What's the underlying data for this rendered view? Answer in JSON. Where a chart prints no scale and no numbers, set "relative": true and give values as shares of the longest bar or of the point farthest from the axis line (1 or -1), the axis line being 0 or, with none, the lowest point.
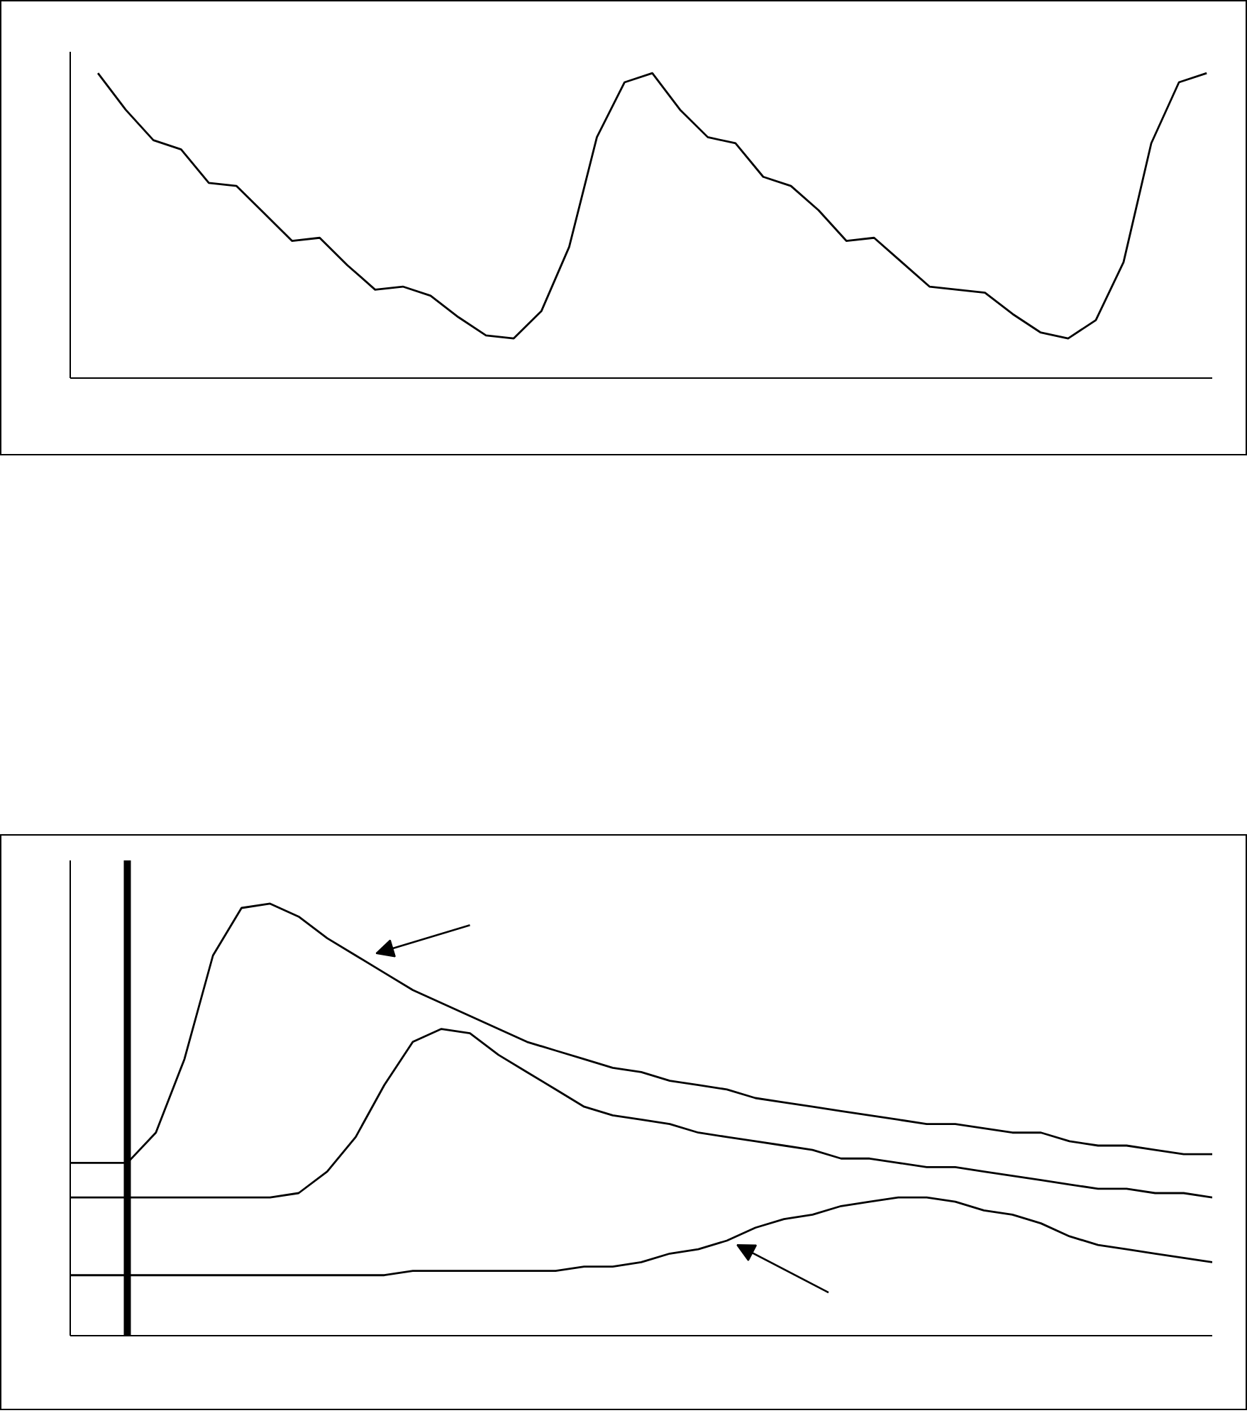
{
  "chart_data": [
    {
      "type": "line",
      "relative": true,
      "categories": [
        null,
        null,
        null,
        null,
        null,
        null,
        null,
        null,
        null,
        null,
        null,
        null,
        null,
        null,
        null,
        null,
        null,
        null,
        null,
        null,
        null,
        null,
        null,
        null,
        null,
        null,
        null,
        null,
        null,
        null,
        null,
        null,
        null,
        null,
        null,
        null,
        null,
        null,
        null,
        null,
        null
      ],
      "series": [
        {
          "color": "#000000",
          "values": [
            1.0,
            0.88,
            0.78,
            0.75,
            0.64,
            0.63,
            0.54,
            0.45,
            0.46,
            0.37,
            0.29,
            0.3,
            0.27,
            0.2,
            0.14,
            0.13,
            0.22,
            0.43,
            0.79,
            0.97,
            1.0,
            0.88,
            0.79,
            0.77,
            0.66,
            0.63,
            0.55,
            0.45,
            0.46,
            0.38,
            0.3,
            0.29,
            0.28,
            0.21,
            0.15,
            0.13,
            0.19,
            0.38,
            0.77,
            0.97,
            1.0
          ]
        }
      ]
    },
    {
      "type": "line",
      "relative": true,
      "categories": [
        null,
        null,
        null,
        null,
        null,
        null,
        null,
        null,
        null,
        null,
        null,
        null,
        null,
        null,
        null,
        null,
        null,
        null,
        null,
        null,
        null,
        null,
        null,
        null,
        null,
        null,
        null,
        null,
        null,
        null,
        null,
        null,
        null,
        null,
        null,
        null,
        null,
        null,
        null,
        null,
        null
      ],
      "series": [
        {
          "color": "#000000",
          "values": [
            0.4,
            0.4,
            0.4,
            0.47,
            0.64,
            0.88,
            0.99,
            1.0,
            0.97,
            0.92,
            0.88,
            0.84,
            0.8,
            0.77,
            0.74,
            0.71,
            0.68,
            0.66,
            0.64,
            0.62,
            0.61,
            0.59,
            0.58,
            0.57,
            0.55,
            0.54,
            0.53,
            0.52,
            0.51,
            0.5,
            0.49,
            0.49,
            0.48,
            0.47,
            0.47,
            0.45,
            0.44,
            0.44,
            0.43,
            0.42,
            0.42
          ]
        },
        {
          "color": "#000000",
          "values": [
            0.32,
            0.32,
            0.32,
            0.32,
            0.32,
            0.32,
            0.32,
            0.32,
            0.33,
            0.38,
            0.46,
            0.58,
            0.68,
            0.71,
            0.7,
            0.65,
            0.61,
            0.57,
            0.53,
            0.51,
            0.5,
            0.49,
            0.47,
            0.46,
            0.45,
            0.44,
            0.43,
            0.41,
            0.41,
            0.4,
            0.39,
            0.39,
            0.38,
            0.37,
            0.36,
            0.35,
            0.34,
            0.34,
            0.33,
            0.33,
            0.32
          ]
        },
        {
          "color": "#000000",
          "values": [
            0.14,
            0.14,
            0.14,
            0.14,
            0.14,
            0.14,
            0.14,
            0.14,
            0.14,
            0.14,
            0.14,
            0.14,
            0.15,
            0.15,
            0.15,
            0.15,
            0.15,
            0.15,
            0.16,
            0.16,
            0.17,
            0.19,
            0.2,
            0.22,
            0.25,
            0.27,
            0.28,
            0.3,
            0.31,
            0.32,
            0.32,
            0.31,
            0.29,
            0.28,
            0.26,
            0.23,
            0.21,
            0.2,
            0.19,
            0.18,
            0.17
          ]
        }
      ]
    }
  ]
}
